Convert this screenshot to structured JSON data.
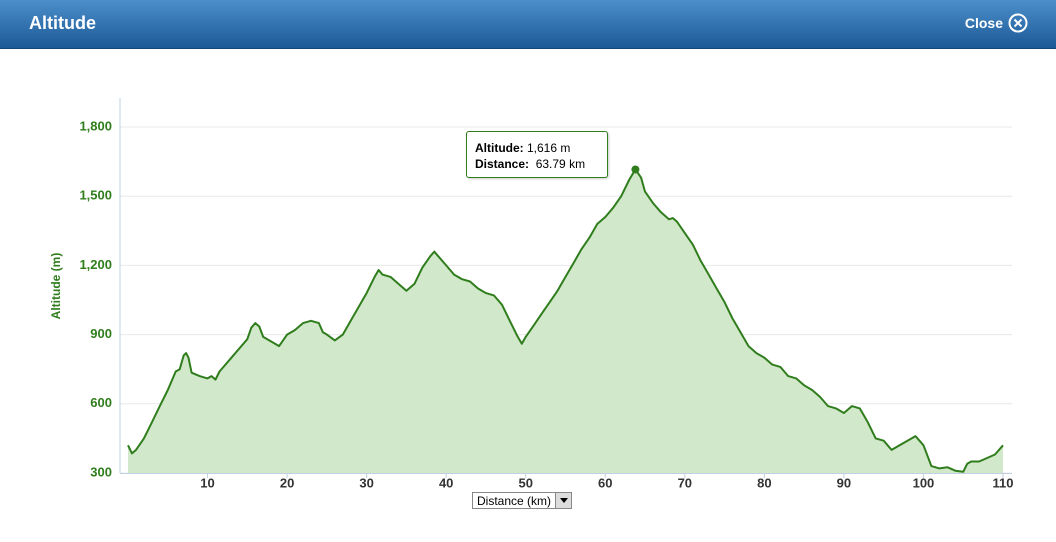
{
  "header": {
    "title": "Altitude",
    "close": "Close"
  },
  "tooltip": {
    "altitude_label": "Altitude:",
    "altitude": "1,616 m",
    "distance_label": "Distance:",
    "distance": "63.79 km"
  },
  "chart_data": {
    "type": "area",
    "ylabel": "Altitude (m)",
    "xlabel": "Distance (km)",
    "color": "#2f7d1c",
    "fill_color": "#d2e8cb",
    "xlim": [
      0,
      110
    ],
    "xticks": [
      10,
      20,
      30,
      40,
      50,
      60,
      70,
      80,
      90,
      100,
      110
    ],
    "ylim": [
      300,
      1900
    ],
    "yticks": [
      300,
      600,
      900,
      {
        "value": 1200,
        "label": "1,200"
      },
      {
        "value": 1500,
        "label": "1,500"
      },
      {
        "value": 1800,
        "label": "1,800"
      }
    ],
    "grid": true,
    "x": [
      0,
      0.5,
      1,
      2,
      3,
      4,
      5,
      6,
      6.5,
      7,
      7.3,
      7.6,
      8,
      9,
      10,
      10.5,
      11,
      11.5,
      12,
      13,
      14,
      15,
      15.5,
      16,
      16.5,
      17,
      18,
      19,
      20,
      21,
      22,
      23,
      24,
      24.5,
      25,
      26,
      27,
      28,
      29,
      30,
      31,
      31.5,
      32,
      33,
      34,
      35,
      36,
      37,
      38,
      38.5,
      39,
      40,
      41,
      42,
      43,
      44,
      45,
      46,
      47,
      48,
      49,
      49.5,
      50,
      51,
      52,
      53,
      54,
      55,
      56,
      57,
      58,
      59,
      60,
      61,
      62,
      63,
      63.79,
      64.5,
      65,
      66,
      67,
      68,
      68.5,
      69,
      70,
      71,
      72,
      73,
      74,
      75,
      76,
      77,
      78,
      79,
      80,
      81,
      82,
      83,
      84,
      85,
      86,
      87,
      88,
      89,
      90,
      91,
      92,
      93,
      94,
      95,
      96,
      97,
      98,
      99,
      100,
      101,
      102,
      103,
      104,
      105,
      105.5,
      106,
      107,
      108,
      109,
      110
    ],
    "values": [
      420,
      385,
      400,
      450,
      520,
      590,
      660,
      740,
      750,
      810,
      820,
      800,
      735,
      720,
      710,
      720,
      705,
      740,
      760,
      800,
      840,
      880,
      930,
      950,
      935,
      890,
      870,
      850,
      900,
      920,
      950,
      960,
      950,
      910,
      900,
      875,
      900,
      960,
      1020,
      1080,
      1150,
      1180,
      1160,
      1150,
      1120,
      1090,
      1120,
      1190,
      1240,
      1260,
      1240,
      1200,
      1160,
      1140,
      1130,
      1100,
      1080,
      1070,
      1030,
      960,
      890,
      860,
      890,
      940,
      990,
      1040,
      1090,
      1150,
      1210,
      1270,
      1320,
      1380,
      1410,
      1450,
      1500,
      1570,
      1616,
      1580,
      1520,
      1470,
      1430,
      1400,
      1405,
      1390,
      1340,
      1290,
      1220,
      1160,
      1100,
      1040,
      970,
      910,
      850,
      820,
      800,
      770,
      760,
      720,
      710,
      680,
      660,
      630,
      590,
      580,
      560,
      590,
      580,
      520,
      450,
      440,
      400,
      420,
      440,
      460,
      420,
      330,
      320,
      325,
      310,
      305,
      340,
      350,
      350,
      365,
      380,
      420
    ]
  }
}
